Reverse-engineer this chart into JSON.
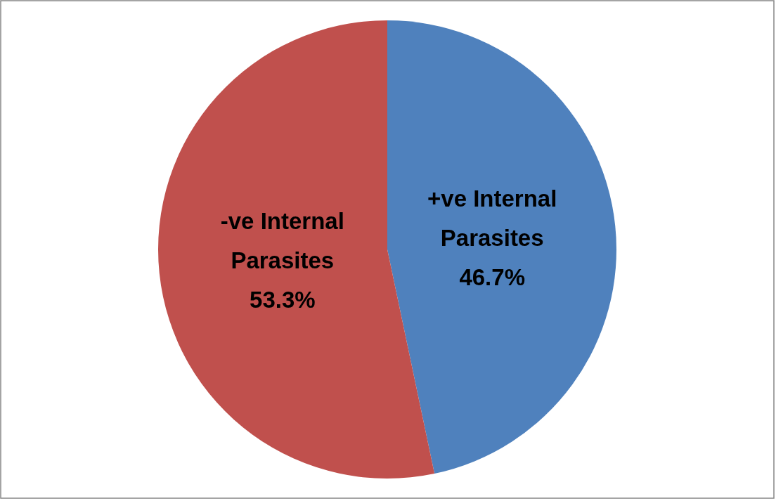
{
  "chart_data": {
    "type": "pie",
    "categories": [
      "+ve Internal Parasites",
      "-ve Internal Parasites"
    ],
    "values": [
      46.7,
      53.3
    ],
    "colors": [
      "#4f81bd",
      "#c0504d"
    ],
    "value_labels": [
      "46.7%",
      "53.3%"
    ]
  }
}
